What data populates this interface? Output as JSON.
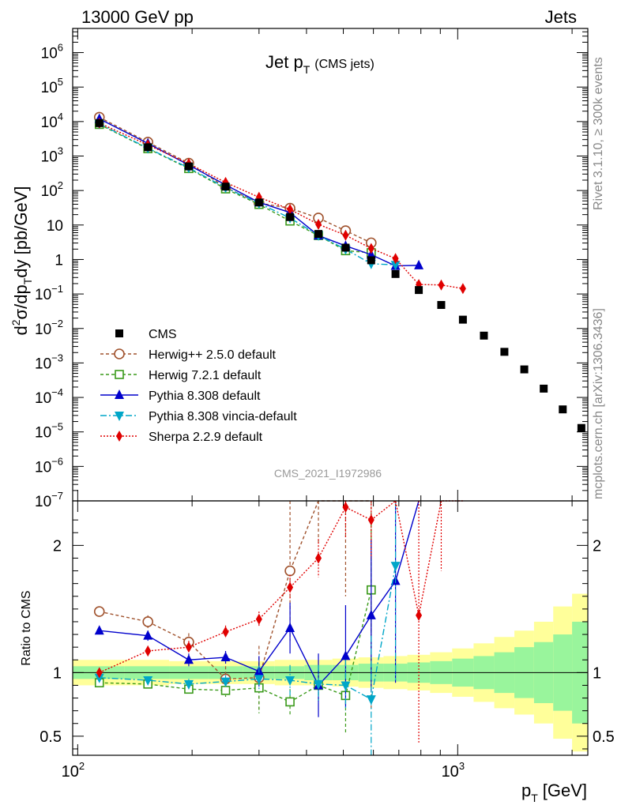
{
  "header": {
    "left": "13000 GeV pp",
    "right": "Jets"
  },
  "side": {
    "rivet": "Rivet 3.1.10, ≥ 300k events",
    "mcplots": "mcplots.cern.ch [arXiv:1306.3436]"
  },
  "chart_data": {
    "type": "scatter",
    "title_main": "Jet p",
    "title_sub": "T",
    "title_tag": "(CMS jets)",
    "watermark": "CMS_2021_I1972986",
    "xlabel_main": "p",
    "xlabel_sub": "T",
    "xlabel_unit": "[GeV]",
    "ylabel": "d²σ/dp_T dy [pb/GeV]",
    "ylabel_parts": {
      "d": "d",
      "two": "2",
      "sigma": "σ/dp",
      "T": "T",
      "dy": "dy [pb/GeV]"
    },
    "ratio_ylabel": "Ratio to CMS",
    "xscale": "log",
    "xlim": [
      97,
      2200
    ],
    "ylim_main_log10": [
      -7,
      6.7
    ],
    "ylim_ratio": [
      0.35,
      2.35
    ],
    "x_tick_labels": [
      {
        "v": 100,
        "base": "10",
        "exp": "2"
      },
      {
        "v": 1000,
        "base": "10",
        "exp": "3"
      }
    ],
    "main_tick_labels": [
      {
        "e": 6,
        "base": "10",
        "exp": "6"
      },
      {
        "e": 5,
        "base": "10",
        "exp": "5"
      },
      {
        "e": 4,
        "base": "10",
        "exp": "4"
      },
      {
        "e": 3,
        "base": "10",
        "exp": "3"
      },
      {
        "e": 2,
        "base": "10",
        "exp": "2"
      },
      {
        "e": 1,
        "base": "10",
        "exp": ""
      },
      {
        "e": 0,
        "base": "1",
        "exp": ""
      },
      {
        "e": -1,
        "base": "10",
        "exp": "−1"
      },
      {
        "e": -2,
        "base": "10",
        "exp": "−2"
      },
      {
        "e": -3,
        "base": "10",
        "exp": "−3"
      },
      {
        "e": -4,
        "base": "10",
        "exp": "−4"
      },
      {
        "e": -5,
        "base": "10",
        "exp": "−5"
      },
      {
        "e": -6,
        "base": "10",
        "exp": "−6"
      },
      {
        "e": -7,
        "base": "10",
        "exp": "−7"
      }
    ],
    "ratio_tick_labels": [
      {
        "v": 2,
        "label": "2"
      },
      {
        "v": 1,
        "label": "1"
      },
      {
        "v": 0.5,
        "label": "0.5"
      }
    ],
    "bin_edges": [
      97,
      133,
      174,
      220,
      272,
      330,
      395,
      468,
      548,
      638,
      737,
      846,
      967,
      1101,
      1248,
      1410,
      1588,
      1784,
      2000,
      2238
    ],
    "band_inner": [
      0.05,
      0.05,
      0.05,
      0.05,
      0.05,
      0.05,
      0.06,
      0.06,
      0.07,
      0.07,
      0.08,
      0.09,
      0.11,
      0.13,
      0.16,
      0.2,
      0.24,
      0.3,
      0.4
    ],
    "band_outer": [
      0.1,
      0.1,
      0.09,
      0.09,
      0.09,
      0.1,
      0.1,
      0.11,
      0.12,
      0.13,
      0.14,
      0.16,
      0.19,
      0.23,
      0.28,
      0.33,
      0.4,
      0.52,
      0.62
    ],
    "cms": {
      "name": "CMS",
      "x": [
        114,
        153,
        196,
        245,
        300,
        362,
        430,
        507,
        592,
        686,
        790,
        905,
        1032,
        1172,
        1327,
        1497,
        1684,
        1890,
        2116
      ],
      "y": [
        9000,
        1800,
        500,
        130,
        45,
        17,
        5.5,
        2.2,
        0.95,
        0.38,
        0.13,
        0.048,
        0.018,
        0.0062,
        0.0021,
        0.00065,
        0.00018,
        4.5e-05,
        1.3e-05
      ]
    },
    "series": [
      {
        "name": "Herwig++ 2.5.0 default",
        "color": "#a0522d",
        "dash": "4,3",
        "marker": "circle-open",
        "x": [
          114,
          153,
          196,
          245,
          300,
          362,
          430,
          507,
          592
        ],
        "ratio": [
          1.48,
          1.4,
          1.24,
          0.95,
          0.96,
          1.8,
          2.9,
          3.1,
          3.2
        ],
        "ratio_err": [
          0.04,
          0.05,
          0.07,
          0.1,
          0.25,
          0.55,
          0.9,
          1.5,
          2.5
        ]
      },
      {
        "name": "Herwig 7.2.1 default",
        "color": "#3a9a1a",
        "dash": "4,3",
        "marker": "square-open",
        "x": [
          114,
          153,
          196,
          245,
          300,
          362,
          430,
          507,
          592
        ],
        "ratio": [
          0.92,
          0.91,
          0.87,
          0.86,
          0.88,
          0.77,
          0.9,
          0.82,
          1.65
        ],
        "ratio_err": [
          0.02,
          0.03,
          0.04,
          0.05,
          0.2,
          0.1,
          0.12,
          0.3,
          0.6
        ]
      },
      {
        "name": "Pythia 8.308 default",
        "color": "#0000cc",
        "dash": "",
        "marker": "triangle-up",
        "x": [
          114,
          153,
          196,
          245,
          300,
          362,
          430,
          507,
          592,
          686,
          790
        ],
        "ratio": [
          1.33,
          1.29,
          1.1,
          1.12,
          1.01,
          1.35,
          0.9,
          1.13,
          1.45,
          1.72,
          5.2
        ],
        "ratio_err": [
          0.03,
          0.04,
          0.05,
          0.05,
          0.12,
          0.2,
          0.25,
          0.4,
          0.6,
          0.8,
          2.0
        ]
      },
      {
        "name": "Pythia 8.308 vincia-default",
        "color": "#00a6c8",
        "dash": "8,3,2,3",
        "marker": "triangle-down",
        "x": [
          114,
          153,
          196,
          245,
          300,
          362,
          430,
          507,
          592,
          686
        ],
        "ratio": [
          0.96,
          0.94,
          0.91,
          0.93,
          0.95,
          0.94,
          0.91,
          0.9,
          0.79,
          1.84
        ],
        "ratio_err": [
          0.02,
          0.03,
          0.04,
          0.05,
          0.1,
          0.12,
          0.15,
          0.2,
          0.5,
          0.9
        ]
      },
      {
        "name": "Sherpa 2.2.9 default",
        "color": "#e00000",
        "dash": "2,2",
        "marker": "diamond",
        "x": [
          114,
          153,
          196,
          245,
          300,
          362,
          430,
          507,
          592,
          686,
          790,
          905,
          1032
        ],
        "ratio": [
          1.0,
          1.17,
          1.2,
          1.32,
          1.42,
          1.67,
          1.9,
          2.3,
          2.2,
          2.8,
          1.45,
          3.8,
          8.0
        ],
        "ratio_err": [
          0.03,
          0.04,
          0.05,
          0.05,
          0.06,
          0.1,
          0.15,
          0.25,
          0.3,
          0.5,
          1.0,
          2.0,
          4.0
        ]
      }
    ]
  }
}
